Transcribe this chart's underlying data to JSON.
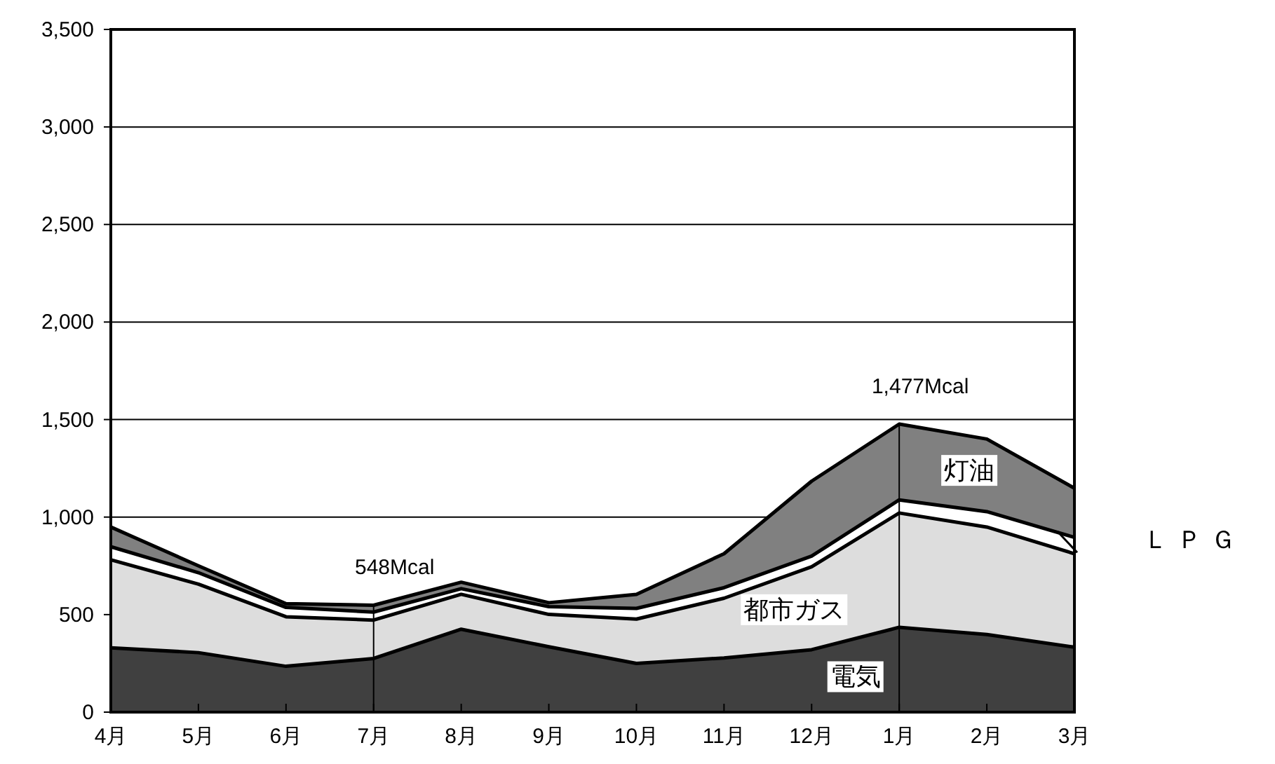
{
  "chart_data": {
    "type": "area",
    "stacked": true,
    "categories": [
      "4月",
      "5月",
      "6月",
      "7月",
      "8月",
      "9月",
      "10月",
      "11月",
      "12月",
      "1月",
      "2月",
      "3月"
    ],
    "series": [
      {
        "name": "電気",
        "color": "#404040",
        "values": [
          330,
          305,
          235,
          275,
          425,
          335,
          250,
          278,
          320,
          435,
          398,
          333
        ]
      },
      {
        "name": "都市ガス",
        "color": "#dddddd",
        "values": [
          451,
          351,
          254,
          197,
          179,
          166,
          227,
          306,
          425,
          586,
          551,
          479
        ]
      },
      {
        "name": "ＬＰＧ",
        "color": "#ffffff",
        "values": [
          67,
          59,
          48,
          41,
          29,
          40,
          55,
          54,
          55,
          67,
          79,
          84
        ]
      },
      {
        "name": "灯油",
        "color": "#808080",
        "values": [
          101,
          35,
          19,
          35,
          33,
          20,
          72,
          174,
          384,
          389,
          372,
          252
        ]
      }
    ],
    "ylim": [
      0,
      3500
    ],
    "yticks": [
      0,
      500,
      {
        "value": 1000,
        "label": "1,000"
      },
      {
        "value": 1500,
        "label": "1,500"
      },
      {
        "value": 2000,
        "label": "2,000"
      },
      {
        "value": 2500,
        "label": "2,500"
      },
      {
        "value": 3000,
        "label": "3,000"
      },
      {
        "value": 3500,
        "label": "3,500"
      }
    ],
    "grid": "y",
    "annotations": [
      {
        "text": "548Mcal",
        "x": "7月",
        "y": 548
      },
      {
        "text": "1,477Mcal",
        "x": "1月",
        "y": 1477
      }
    ]
  }
}
